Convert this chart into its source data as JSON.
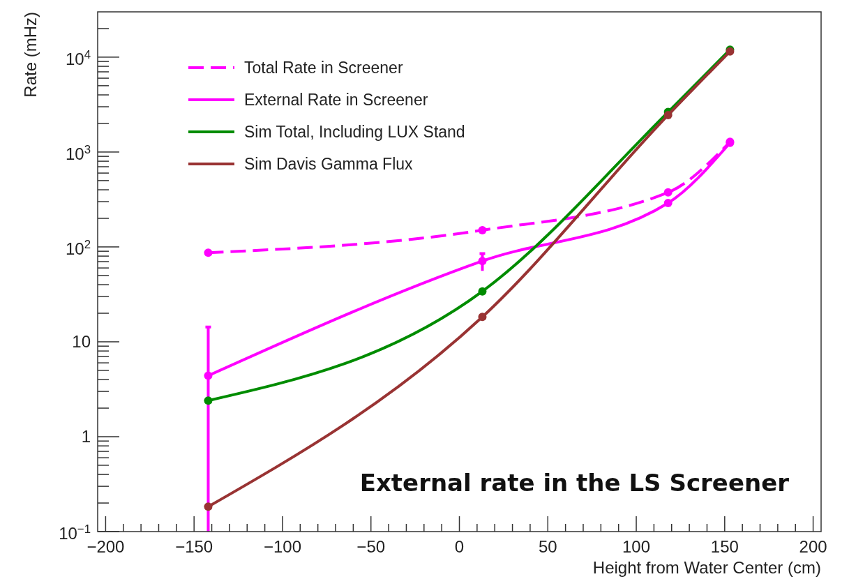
{
  "chart_data": {
    "type": "line",
    "xlabel": "Height from Water Center (cm)",
    "ylabel": "Rate (mHz)",
    "log": "y",
    "xlim": [
      -204.5,
      204.5
    ],
    "ylim": [
      0.1,
      30000
    ],
    "xticks": [
      {
        "value": -200,
        "label": "−200"
      },
      {
        "value": -150,
        "label": "−150"
      },
      {
        "value": -100,
        "label": "−100"
      },
      {
        "value": -50,
        "label": "−50"
      },
      0,
      50,
      100,
      150,
      200
    ],
    "yticks": [
      {
        "value": 0.1,
        "label": "10$^{−1}$"
      },
      1,
      10,
      {
        "value": 100,
        "label": "10$^{2}$"
      },
      {
        "value": 1000,
        "label": "10$^{3}$"
      },
      {
        "value": 10000,
        "label": "10$^{4}$"
      }
    ],
    "grid": false,
    "legend": "top left",
    "marker": "circle",
    "x": [
      -142,
      13,
      118,
      153
    ],
    "series": [
      {
        "name": "Total Rate in Screener",
        "color": "#ff00ff",
        "line_style": "dashed",
        "values": [
          87,
          150,
          375,
          1280
        ]
      },
      {
        "name": "External Rate in Screener",
        "color": "#ff00ff",
        "line_style": "solid",
        "values": [
          4.4,
          71,
          290,
          1250
        ],
        "errors": [
          [
            0.1,
            14.3
          ],
          [
            56,
            85
          ],
          null,
          null
        ]
      },
      {
        "name": "Sim Total, Including LUX Stand",
        "color": "#008c00",
        "line_style": "solid",
        "values": [
          2.4,
          34,
          2640,
          12000
        ]
      },
      {
        "name": "Sim Davis Gamma Flux",
        "color": "#993333",
        "line_style": "solid",
        "values": [
          0.183,
          18.3,
          2450,
          11500
        ]
      }
    ],
    "annotations": [
      {
        "text": "External rate in the LS Screener"
      }
    ]
  }
}
